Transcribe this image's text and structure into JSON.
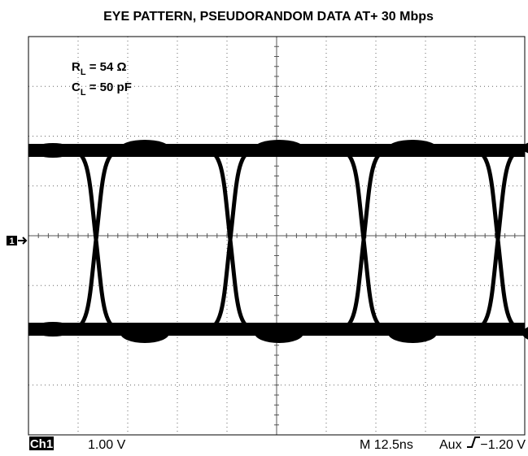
{
  "title": "EYE PATTERN, PSEUDORANDOM DATA AT+ 30 Mbps",
  "annotations": [
    {
      "symbol": "R",
      "subscript": "L",
      "text": " = 54 Ω"
    },
    {
      "symbol": "C",
      "subscript": "L",
      "text": " = 50 pF"
    }
  ],
  "channel_marker": "1",
  "status_bar": {
    "channel": "Ch1",
    "scale": "1.00 V",
    "timebase": "M 12.5ns",
    "trigger_source": "Aux",
    "trigger_level": "−1.20 V"
  }
}
